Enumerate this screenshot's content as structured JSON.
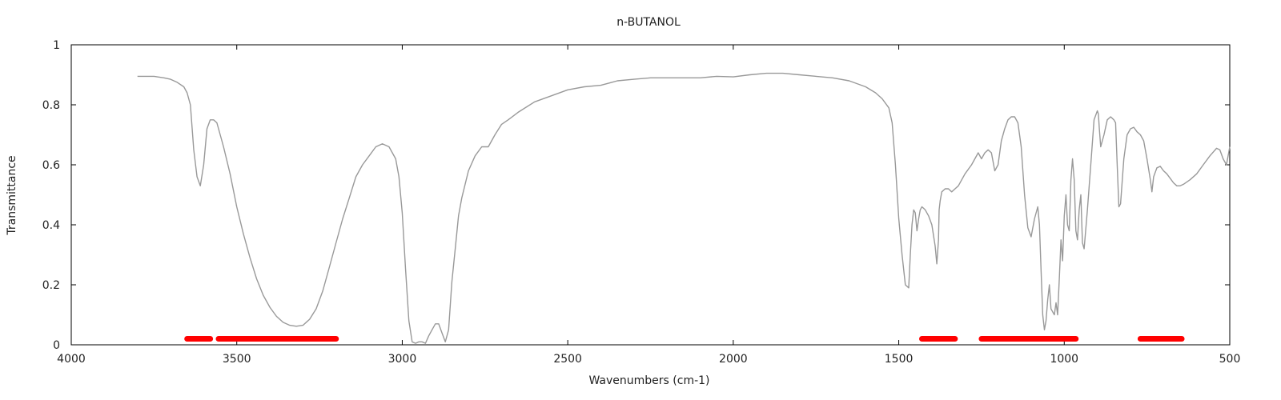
{
  "chart_data": {
    "type": "line",
    "title": "n-BUTANOL",
    "xlabel": "Wavenumbers (cm-1)",
    "ylabel": "Transmittance",
    "xlim": [
      4000,
      500
    ],
    "ylim": [
      0,
      1
    ],
    "x_reversed": true,
    "grid": false,
    "x_ticks": [
      4000,
      3500,
      3000,
      2500,
      2000,
      1500,
      1000,
      500
    ],
    "x_tick_labels": [
      "4000",
      "3500",
      "3000",
      "2500",
      "2000",
      "1500",
      "1000",
      "500"
    ],
    "y_ticks": [
      0,
      0.2,
      0.4,
      0.6,
      0.8,
      1
    ],
    "y_tick_labels": [
      "0",
      "0.2",
      "0.4",
      "0.6",
      "0.8",
      "1"
    ],
    "line_color": "#999999",
    "highlight_color": "#ff0000",
    "series": [
      {
        "x": [
          3800,
          3750,
          3720,
          3700,
          3680,
          3660,
          3650,
          3640,
          3630,
          3620,
          3610,
          3600,
          3590,
          3580,
          3570,
          3560,
          3540,
          3520,
          3500,
          3480,
          3460,
          3440,
          3420,
          3400,
          3380,
          3360,
          3340,
          3320,
          3300,
          3280,
          3260,
          3240,
          3220,
          3200,
          3180,
          3160,
          3140,
          3120,
          3100,
          3080,
          3060,
          3040,
          3020,
          3010,
          3000,
          2990,
          2980,
          2970,
          2960,
          2950,
          2940,
          2930,
          2920,
          2910,
          2900,
          2890,
          2880,
          2870,
          2860,
          2850,
          2840,
          2830,
          2820,
          2800,
          2780,
          2760,
          2740,
          2720,
          2700,
          2680,
          2650,
          2600,
          2550,
          2500,
          2450,
          2400,
          2350,
          2300,
          2250,
          2200,
          2150,
          2100,
          2050,
          2000,
          1950,
          1900,
          1850,
          1800,
          1750,
          1700,
          1650,
          1600,
          1570,
          1550,
          1530,
          1520,
          1510,
          1500,
          1490,
          1480,
          1470,
          1465,
          1460,
          1455,
          1450,
          1445,
          1440,
          1435,
          1430,
          1425,
          1420,
          1410,
          1400,
          1390,
          1385,
          1380,
          1378,
          1375,
          1370,
          1360,
          1350,
          1340,
          1330,
          1320,
          1300,
          1280,
          1260,
          1250,
          1240,
          1230,
          1220,
          1210,
          1200,
          1190,
          1180,
          1170,
          1160,
          1150,
          1140,
          1130,
          1120,
          1110,
          1100,
          1090,
          1080,
          1075,
          1070,
          1065,
          1060,
          1055,
          1050,
          1045,
          1040,
          1035,
          1030,
          1025,
          1020,
          1015,
          1010,
          1005,
          1000,
          995,
          990,
          985,
          980,
          975,
          970,
          965,
          960,
          955,
          950,
          945,
          940,
          930,
          920,
          910,
          900,
          897,
          894,
          890,
          880,
          870,
          860,
          850,
          845,
          840,
          835,
          830,
          820,
          810,
          800,
          790,
          780,
          770,
          760,
          750,
          740,
          735,
          730,
          720,
          710,
          700,
          690,
          680,
          670,
          660,
          650,
          640,
          620,
          600,
          580,
          560,
          540,
          530,
          520,
          510,
          500
        ],
        "y": [
          0.895,
          0.895,
          0.89,
          0.885,
          0.875,
          0.86,
          0.84,
          0.8,
          0.65,
          0.56,
          0.53,
          0.6,
          0.72,
          0.75,
          0.75,
          0.74,
          0.66,
          0.57,
          0.46,
          0.37,
          0.29,
          0.22,
          0.165,
          0.125,
          0.095,
          0.075,
          0.065,
          0.062,
          0.065,
          0.085,
          0.12,
          0.18,
          0.26,
          0.34,
          0.42,
          0.49,
          0.56,
          0.6,
          0.63,
          0.66,
          0.67,
          0.66,
          0.62,
          0.56,
          0.44,
          0.25,
          0.08,
          0.01,
          0.005,
          0.01,
          0.01,
          0.005,
          0.03,
          0.05,
          0.07,
          0.07,
          0.04,
          0.01,
          0.05,
          0.21,
          0.32,
          0.43,
          0.49,
          0.58,
          0.63,
          0.66,
          0.66,
          0.7,
          0.735,
          0.75,
          0.775,
          0.81,
          0.83,
          0.85,
          0.86,
          0.865,
          0.88,
          0.885,
          0.89,
          0.89,
          0.89,
          0.89,
          0.895,
          0.893,
          0.9,
          0.905,
          0.905,
          0.9,
          0.895,
          0.89,
          0.88,
          0.86,
          0.84,
          0.82,
          0.79,
          0.74,
          0.6,
          0.42,
          0.3,
          0.2,
          0.19,
          0.3,
          0.4,
          0.45,
          0.44,
          0.38,
          0.42,
          0.45,
          0.46,
          0.455,
          0.45,
          0.43,
          0.4,
          0.33,
          0.27,
          0.35,
          0.45,
          0.48,
          0.51,
          0.52,
          0.52,
          0.51,
          0.52,
          0.53,
          0.57,
          0.6,
          0.64,
          0.62,
          0.64,
          0.65,
          0.64,
          0.58,
          0.6,
          0.68,
          0.72,
          0.75,
          0.76,
          0.76,
          0.74,
          0.66,
          0.5,
          0.39,
          0.36,
          0.42,
          0.46,
          0.4,
          0.25,
          0.1,
          0.05,
          0.08,
          0.15,
          0.2,
          0.12,
          0.11,
          0.1,
          0.14,
          0.1,
          0.22,
          0.35,
          0.28,
          0.43,
          0.5,
          0.4,
          0.38,
          0.55,
          0.62,
          0.55,
          0.38,
          0.35,
          0.45,
          0.5,
          0.34,
          0.32,
          0.45,
          0.6,
          0.75,
          0.78,
          0.77,
          0.72,
          0.66,
          0.7,
          0.75,
          0.76,
          0.75,
          0.74,
          0.6,
          0.46,
          0.47,
          0.62,
          0.7,
          0.72,
          0.725,
          0.71,
          0.7,
          0.68,
          0.62,
          0.55,
          0.51,
          0.56,
          0.59,
          0.595,
          0.58,
          0.57,
          0.555,
          0.54,
          0.53,
          0.53,
          0.535,
          0.55,
          0.57,
          0.6,
          0.63,
          0.655,
          0.65,
          0.62,
          0.6,
          0.66
        ]
      }
    ],
    "highlight_ranges": [
      [
        3650,
        3580
      ],
      [
        3555,
        3200
      ],
      [
        1430,
        1330
      ],
      [
        1250,
        965
      ],
      [
        770,
        645
      ]
    ],
    "highlight_y": 0.02
  }
}
